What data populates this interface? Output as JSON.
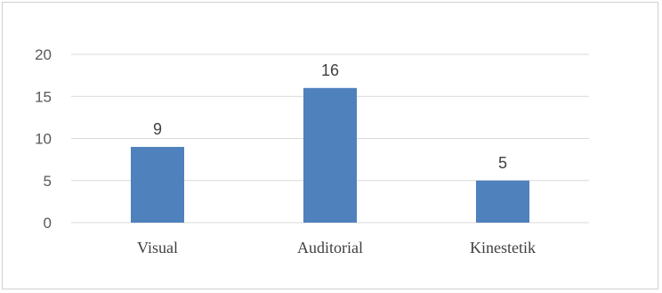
{
  "chart_data": {
    "type": "bar",
    "categories": [
      "Visual",
      "Auditorial",
      "Kinestetik"
    ],
    "values": [
      9,
      16,
      5
    ],
    "ylim": [
      0,
      20
    ],
    "yticks": [
      0,
      5,
      10,
      15,
      20
    ],
    "grid": true,
    "bar_color": "#4f81bd",
    "data_labels": true
  }
}
